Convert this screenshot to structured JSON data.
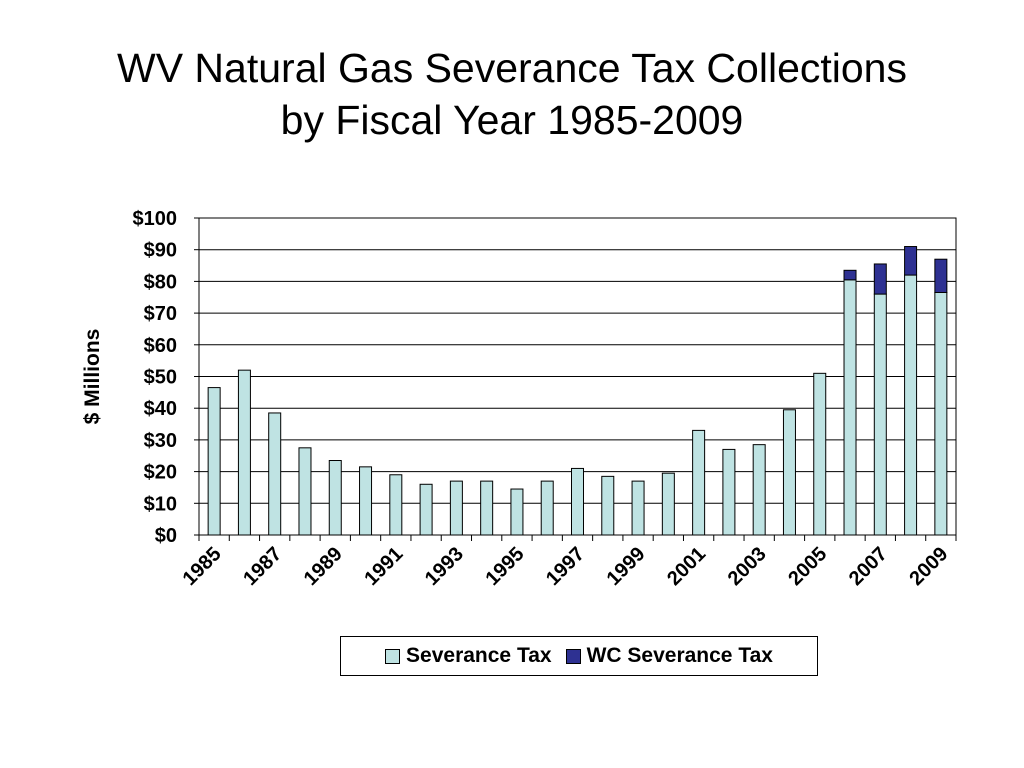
{
  "slide": {
    "title_line1": "WV Natural Gas Severance Tax Collections",
    "title_line2": "by Fiscal Year 1985-2009"
  },
  "chart_data": {
    "type": "bar",
    "stacked": true,
    "title": "WV Natural Gas Severance Tax Collections by Fiscal Year 1985-2009",
    "xlabel": "",
    "ylabel": "$ Millions",
    "ylim": [
      0,
      100
    ],
    "yticks": [
      "$0",
      "$10",
      "$20",
      "$30",
      "$40",
      "$50",
      "$60",
      "$70",
      "$80",
      "$90",
      "$100"
    ],
    "x_tick_labels": [
      "1985",
      "1987",
      "1989",
      "1991",
      "1993",
      "1995",
      "1997",
      "1999",
      "2001",
      "2003",
      "2005",
      "2007",
      "2009"
    ],
    "grid": true,
    "legend_position": "bottom",
    "categories": [
      "1985",
      "1986",
      "1987",
      "1988",
      "1989",
      "1990",
      "1991",
      "1992",
      "1993",
      "1994",
      "1995",
      "1996",
      "1997",
      "1998",
      "1999",
      "2000",
      "2001",
      "2002",
      "2003",
      "2004",
      "2005",
      "2006",
      "2007",
      "2008",
      "2009"
    ],
    "series": [
      {
        "name": "Severance Tax",
        "color": "#bfe3e3",
        "values": [
          46.5,
          52,
          38.5,
          27.5,
          23.5,
          21.5,
          19,
          16,
          17,
          17,
          14.5,
          17,
          21,
          18.5,
          17,
          19.5,
          33,
          27,
          28.5,
          39.5,
          51,
          80.5,
          76,
          82,
          76.5
        ]
      },
      {
        "name": "WC Severance Tax",
        "color": "#2e3192",
        "values": [
          0,
          0,
          0,
          0,
          0,
          0,
          0,
          0,
          0,
          0,
          0,
          0,
          0,
          0,
          0,
          0,
          0,
          0,
          0,
          0,
          0,
          3,
          9.5,
          9,
          10.5
        ]
      }
    ]
  }
}
